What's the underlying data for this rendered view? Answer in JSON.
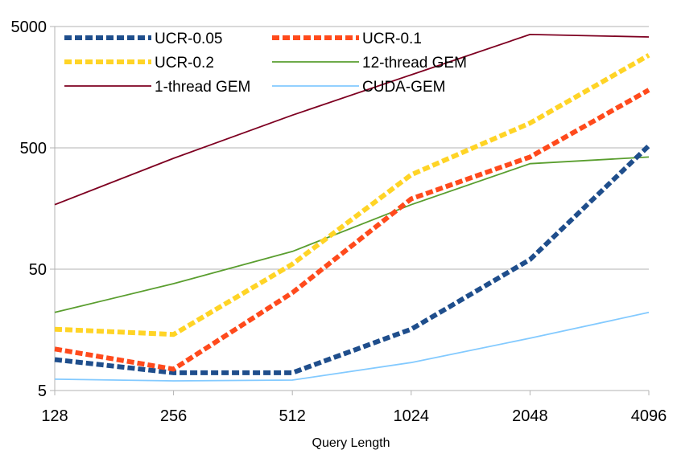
{
  "chart_data": {
    "type": "line",
    "title": "",
    "xlabel": "Query Length",
    "ylabel": "",
    "y_scale": "log10",
    "ylim": [
      5,
      5000
    ],
    "y_ticks": [
      "5",
      "50",
      "500",
      "5000"
    ],
    "categories": [
      "128",
      "256",
      "512",
      "1024",
      "2048",
      "4096"
    ],
    "grid": "horizontal",
    "legend_position": "top",
    "series": [
      {
        "name": "UCR-0.05",
        "color": "#1f4e8c",
        "style": "dashed-thick",
        "values": [
          9,
          7,
          7,
          16,
          60,
          520
        ]
      },
      {
        "name": "UCR-0.1",
        "color": "#ff4a1c",
        "style": "dashed-thick",
        "values": [
          11,
          7.5,
          32,
          190,
          420,
          1500
        ]
      },
      {
        "name": "UCR-0.2",
        "color": "#ffd426",
        "style": "dashed-thick",
        "values": [
          16,
          14.5,
          55,
          300,
          800,
          2900
        ]
      },
      {
        "name": "12-thread GEM",
        "color": "#5a9e2f",
        "style": "solid",
        "values": [
          22,
          38,
          70,
          170,
          370,
          420
        ]
      },
      {
        "name": "1-thread GEM",
        "color": "#7e0021",
        "style": "solid",
        "values": [
          170,
          410,
          930,
          2000,
          4300,
          4100
        ]
      },
      {
        "name": "CUDA-GEM",
        "color": "#83caff",
        "style": "solid",
        "values": [
          6.2,
          6,
          6.1,
          8.5,
          13.5,
          22
        ]
      }
    ]
  }
}
